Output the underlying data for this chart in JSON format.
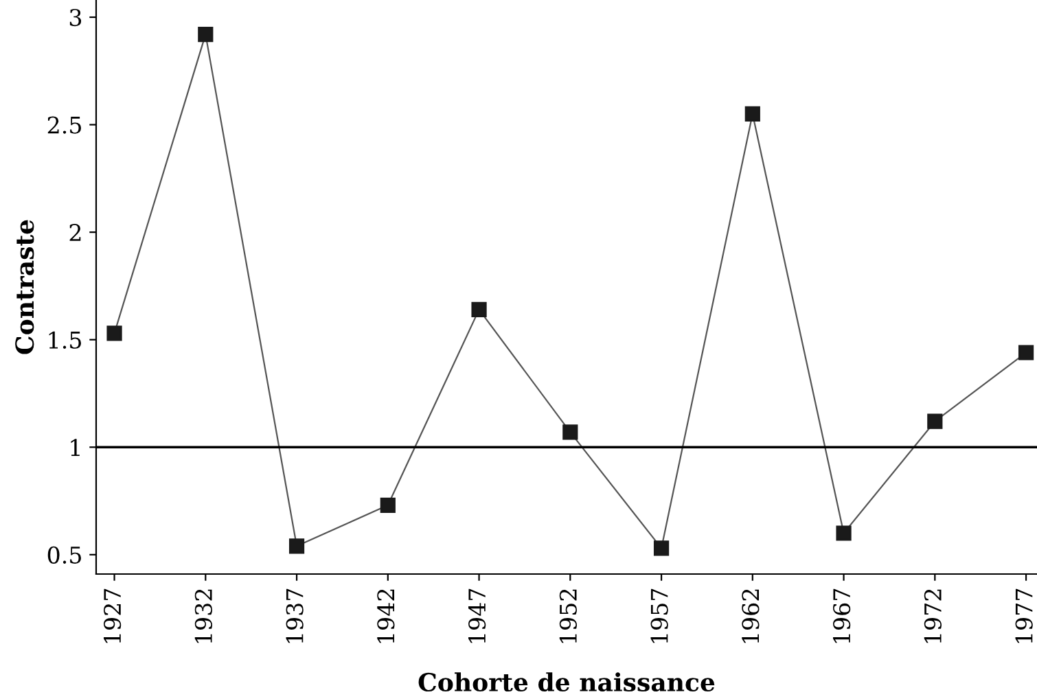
{
  "chart_data": {
    "type": "line",
    "xlabel": "Cohorte de naissance",
    "ylabel": "Contraste",
    "x": [
      1927,
      1932,
      1937,
      1942,
      1947,
      1952,
      1957,
      1962,
      1967,
      1972,
      1977
    ],
    "series": [
      {
        "color": "#1a1a1a",
        "values": [
          1.53,
          2.92,
          0.54,
          0.73,
          1.64,
          1.07,
          0.53,
          2.55,
          0.6,
          1.12,
          1.44
        ]
      }
    ],
    "xlim": [
      1926,
      1977.6
    ],
    "xticks": [
      1927,
      1932,
      1937,
      1942,
      1947,
      1952,
      1957,
      1962,
      1967,
      1972,
      1977
    ],
    "ylim": [
      0.41,
      3.08
    ],
    "yticks": [
      0.5,
      1,
      1.5,
      2,
      2.5,
      3
    ],
    "ref_lines": [
      {
        "axis": "y",
        "value": 1,
        "color": "#000000"
      }
    ],
    "marker": "square",
    "line_style": "solid",
    "grid": false,
    "legend": false
  }
}
